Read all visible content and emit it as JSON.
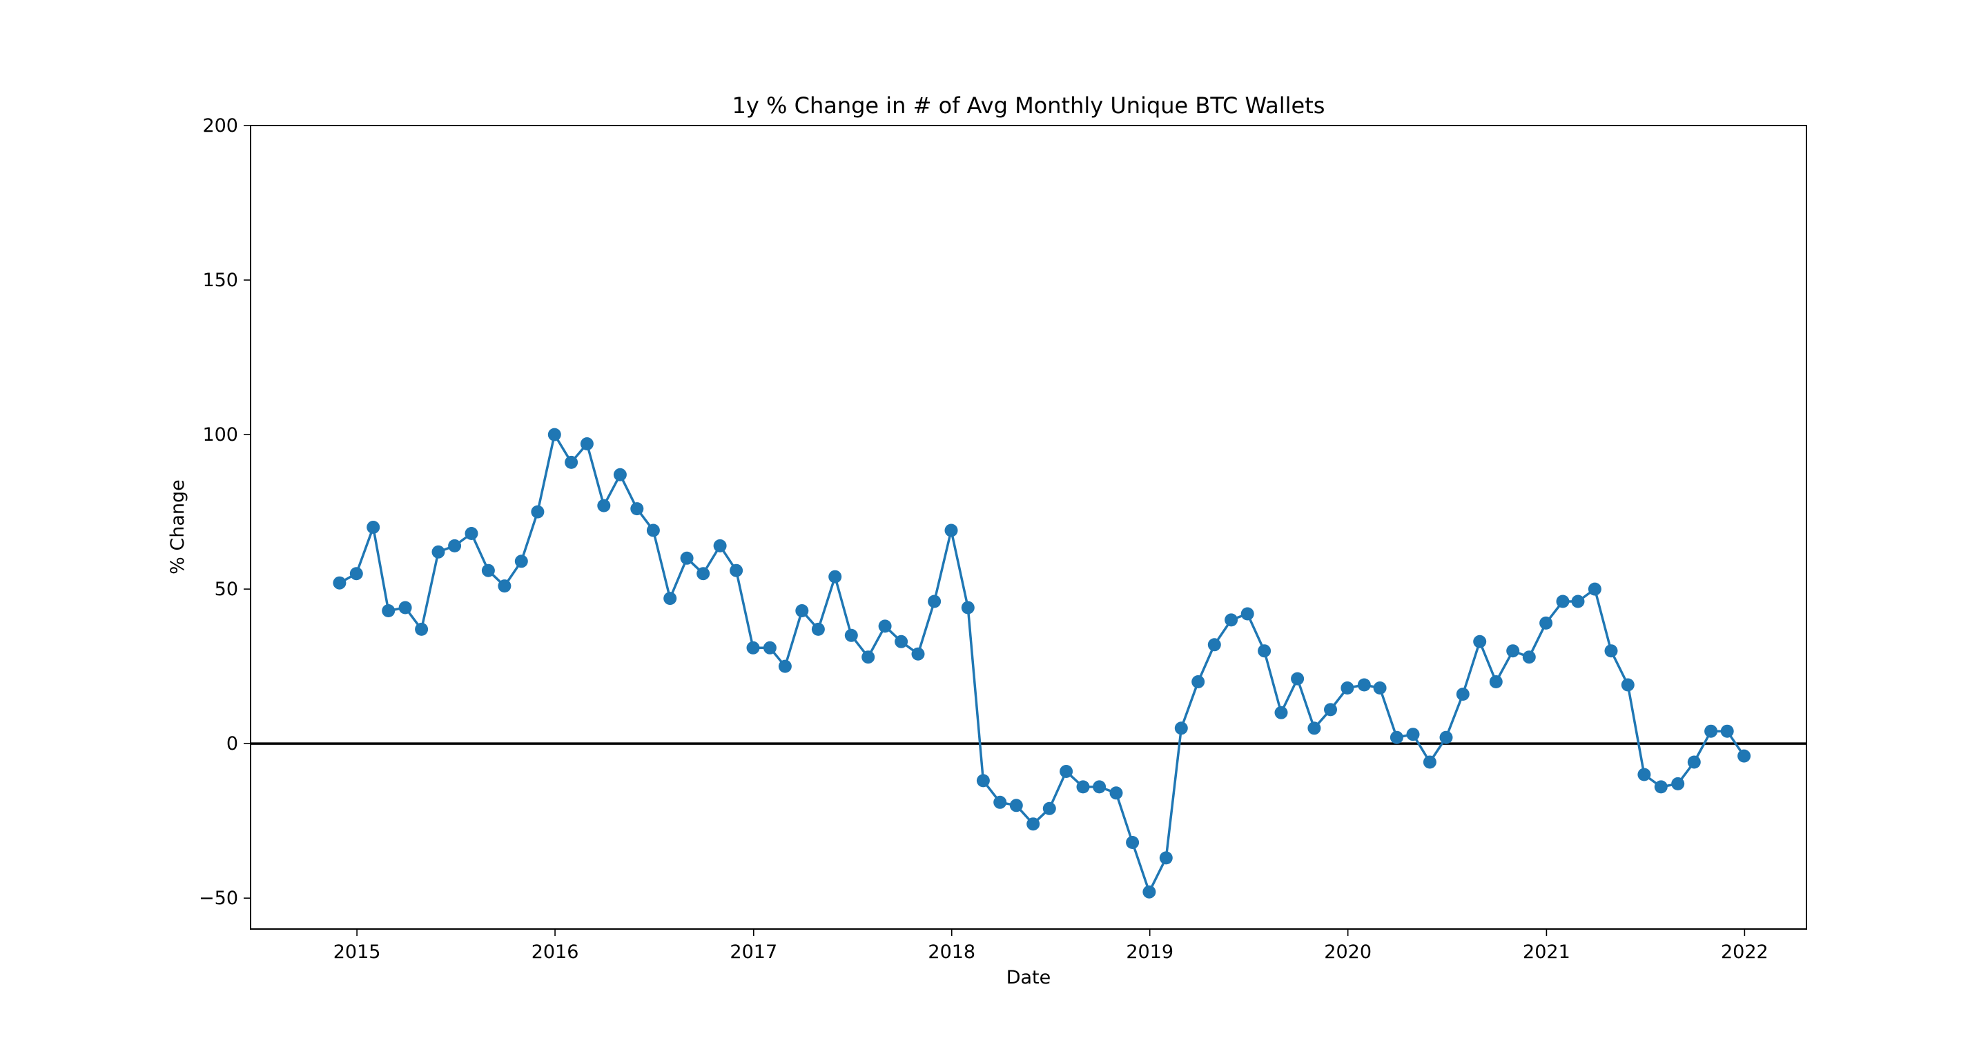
{
  "chart_data": {
    "type": "line",
    "title": "1y % Change in # of Avg Monthly Unique BTC Wallets",
    "xlabel": "Date",
    "ylabel": "% Change",
    "xlim": [
      "2014-06-19",
      "2022-04-25"
    ],
    "ylim": [
      -60,
      200
    ],
    "x_ticks": [
      "2015",
      "2016",
      "2017",
      "2018",
      "2019",
      "2020",
      "2021",
      "2022"
    ],
    "y_ticks": [
      "−50",
      "0",
      "50",
      "100",
      "150",
      "200"
    ],
    "reference_line": {
      "y": 0,
      "color": "#000000"
    },
    "grid": false,
    "legend": "none",
    "colors": {
      "series": "#1f77b4",
      "axes": "#000000",
      "background": "#ffffff"
    },
    "series": [
      {
        "x": [
          "2014-11",
          "2014-12",
          "2015-01",
          "2015-02",
          "2015-03",
          "2015-04",
          "2015-05",
          "2015-06",
          "2015-07",
          "2015-08",
          "2015-09",
          "2015-10",
          "2015-11",
          "2015-12",
          "2016-01",
          "2016-02",
          "2016-03",
          "2016-04",
          "2016-05",
          "2016-06",
          "2016-07",
          "2016-08",
          "2016-09",
          "2016-10",
          "2016-11",
          "2016-12",
          "2017-01",
          "2017-02",
          "2017-03",
          "2017-04",
          "2017-05",
          "2017-06",
          "2017-07",
          "2017-08",
          "2017-09",
          "2017-10",
          "2017-11",
          "2017-12",
          "2018-01",
          "2018-02",
          "2018-03",
          "2018-04",
          "2018-05",
          "2018-06",
          "2018-07",
          "2018-08",
          "2018-09",
          "2018-10",
          "2018-11",
          "2018-12",
          "2019-01",
          "2019-02",
          "2019-03",
          "2019-04",
          "2019-05",
          "2019-06",
          "2019-07",
          "2019-08",
          "2019-09",
          "2019-10",
          "2019-11",
          "2019-12",
          "2020-01",
          "2020-02",
          "2020-03",
          "2020-04",
          "2020-05",
          "2020-06",
          "2020-07",
          "2020-08",
          "2020-09",
          "2020-10",
          "2020-11",
          "2020-12",
          "2021-01",
          "2021-02",
          "2021-03",
          "2021-04",
          "2021-05",
          "2021-06",
          "2021-07",
          "2021-08",
          "2021-09",
          "2021-10",
          "2021-11",
          "2021-12"
        ],
        "values": [
          52,
          55,
          70,
          43,
          44,
          37,
          62,
          64,
          68,
          56,
          51,
          59,
          75,
          100,
          91,
          97,
          77,
          87,
          76,
          69,
          47,
          60,
          55,
          64,
          56,
          31,
          31,
          25,
          43,
          37,
          54,
          35,
          28,
          38,
          33,
          29,
          46,
          69,
          44,
          -12,
          -19,
          -20,
          -26,
          -21,
          -9,
          -14,
          -14,
          -16,
          -32,
          -48,
          -37,
          5,
          20,
          32,
          40,
          42,
          30,
          10,
          21,
          5,
          11,
          18,
          19,
          18,
          2,
          3,
          -6,
          2,
          16,
          33,
          20,
          30,
          28,
          39,
          46,
          46,
          50,
          30,
          19,
          -10,
          -14,
          -13,
          -6,
          4,
          4,
          -4
        ]
      }
    ]
  }
}
